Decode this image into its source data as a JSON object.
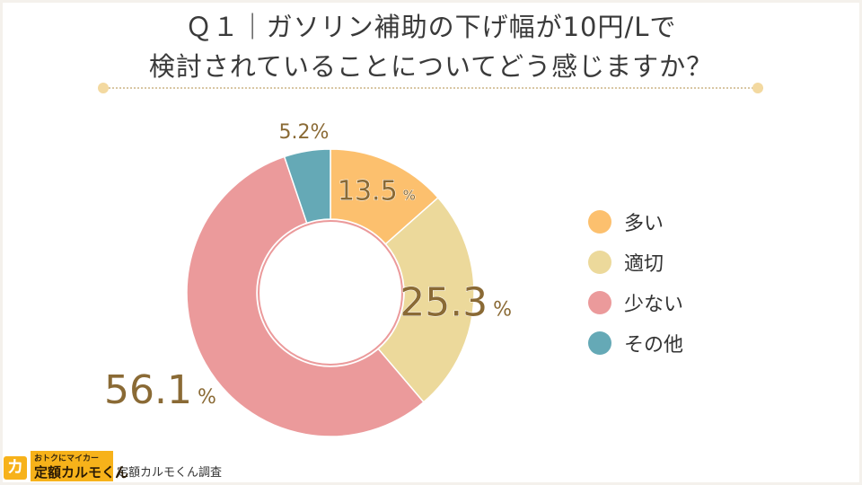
{
  "title": {
    "line1": "Ｑ１｜ガソリン補助の下げ幅が10円/Lで",
    "line2": "検討されていることについてどう感じますか？"
  },
  "chart_data": {
    "type": "pie",
    "donut": true,
    "categories": [
      "多い",
      "適切",
      "少ない",
      "その他"
    ],
    "values": [
      13.5,
      25.3,
      56.1,
      5.2
    ],
    "unit": "%",
    "value_labels": [
      "13.5",
      "25.3",
      "56.1",
      "5.2%"
    ],
    "colors": [
      "#fcc06e",
      "#ecd99b",
      "#eb9a9b",
      "#65a9b6"
    ],
    "label_color": "#8a6a35",
    "start": "12 o'clock, clockwise",
    "legend_position": "right"
  },
  "footer": {
    "logo_mark": "カ",
    "logo_tagline": "おトクにマイカー",
    "logo_name": "定額カルモくん",
    "source": "定額カルモくん調査"
  }
}
